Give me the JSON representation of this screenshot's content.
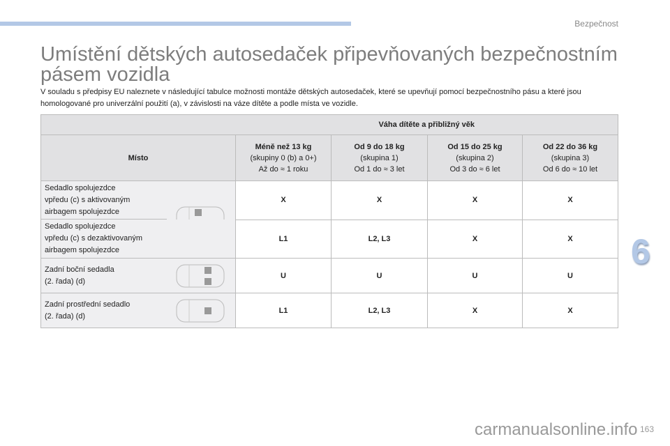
{
  "header": {
    "section": "Bezpečnost",
    "chapter_number": "6",
    "accent": "#b3c8e6"
  },
  "title": "Umístění dětských autosedaček připevňovaných bezpečnostním pásem vozidla",
  "intro": "V souladu s předpisy EU naleznete v následující tabulce možnosti montáže dětských autosedaček, které se upevňují pomocí bezpečnostního pásu a které jsou homologované pro univerzální použití (a), v závislosti na váze dítěte a podle místa ve vozidle.",
  "table": {
    "group_header": "Váha dítěte a přibližný věk",
    "place_header": "Místo",
    "columns": [
      {
        "weight": "Méně než 13 kg",
        "group": "(skupiny 0 (b) a 0+)",
        "age": "Až do ≈ 1 roku"
      },
      {
        "weight": "Od 9 do 18 kg",
        "group": "(skupina 1)",
        "age": "Od 1 do ≈ 3 let"
      },
      {
        "weight": "Od 15 do 25 kg",
        "group": "(skupina 2)",
        "age": "Od 3 do ≈ 6 let"
      },
      {
        "weight": "Od 22 do 36 kg",
        "group": "(skupina 3)",
        "age": "Od 6 do ≈ 10 let"
      }
    ],
    "rows": [
      {
        "place": [
          "Sedadlo spolujezdce",
          "vpředu (c) s aktivovaným",
          "airbagem spolujezdce"
        ],
        "values": [
          "X",
          "X",
          "X",
          "X"
        ]
      },
      {
        "place": [
          "Sedadlo spolujezdce",
          "vpředu (c) s dezaktivovaným",
          "airbagem spolujezdce"
        ],
        "values": [
          "L1",
          "L2, L3",
          "X",
          "X"
        ]
      },
      {
        "place": [
          "Zadní boční sedadla",
          "(2. řada) (d)"
        ],
        "values": [
          "U",
          "U",
          "U",
          "U"
        ]
      },
      {
        "place": [
          "Zadní prostřední sedadlo",
          "(2. řada) (d)"
        ],
        "values": [
          "L1",
          "L2, L3",
          "X",
          "X"
        ]
      }
    ]
  },
  "footer": {
    "page_number": "163",
    "watermark": "carmanualsonline.info"
  }
}
